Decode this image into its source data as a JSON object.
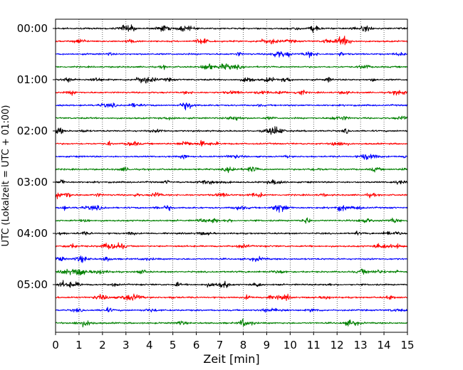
{
  "chart_data": {
    "type": "line",
    "title": "",
    "xlabel": "Zeit  [min]",
    "ylabel": "UTC (Lokalzeit = UTC + 01:00)",
    "xlim": [
      0,
      15
    ],
    "x_ticks": [
      "0",
      "1",
      "2",
      "3",
      "4",
      "5",
      "6",
      "7",
      "8",
      "9",
      "10",
      "11",
      "12",
      "13",
      "14",
      "15"
    ],
    "grid": "vertical dotted at each minute",
    "trace_interval_min": 15,
    "time_labels": [
      "00:00",
      "01:00",
      "02:00",
      "03:00",
      "04:00",
      "05:00"
    ],
    "trace_colors": [
      "#000000",
      "#ff0000",
      "#0000ff",
      "#008000"
    ],
    "trace_count": 24,
    "traces": [
      {
        "start": "00:00",
        "color": "#000000"
      },
      {
        "start": "00:15",
        "color": "#ff0000"
      },
      {
        "start": "00:30",
        "color": "#0000ff"
      },
      {
        "start": "00:45",
        "color": "#008000"
      },
      {
        "start": "01:00",
        "color": "#000000"
      },
      {
        "start": "01:15",
        "color": "#ff0000"
      },
      {
        "start": "01:30",
        "color": "#0000ff"
      },
      {
        "start": "01:45",
        "color": "#008000"
      },
      {
        "start": "02:00",
        "color": "#000000"
      },
      {
        "start": "02:15",
        "color": "#ff0000"
      },
      {
        "start": "02:30",
        "color": "#0000ff"
      },
      {
        "start": "02:45",
        "color": "#008000"
      },
      {
        "start": "03:00",
        "color": "#000000"
      },
      {
        "start": "03:15",
        "color": "#ff0000"
      },
      {
        "start": "03:30",
        "color": "#0000ff"
      },
      {
        "start": "03:45",
        "color": "#008000"
      },
      {
        "start": "04:00",
        "color": "#000000"
      },
      {
        "start": "04:15",
        "color": "#ff0000"
      },
      {
        "start": "04:30",
        "color": "#0000ff"
      },
      {
        "start": "04:45",
        "color": "#008000"
      },
      {
        "start": "05:00",
        "color": "#000000"
      },
      {
        "start": "05:15",
        "color": "#ff0000"
      },
      {
        "start": "05:30",
        "color": "#0000ff"
      },
      {
        "start": "05:45",
        "color": "#008000"
      }
    ]
  }
}
